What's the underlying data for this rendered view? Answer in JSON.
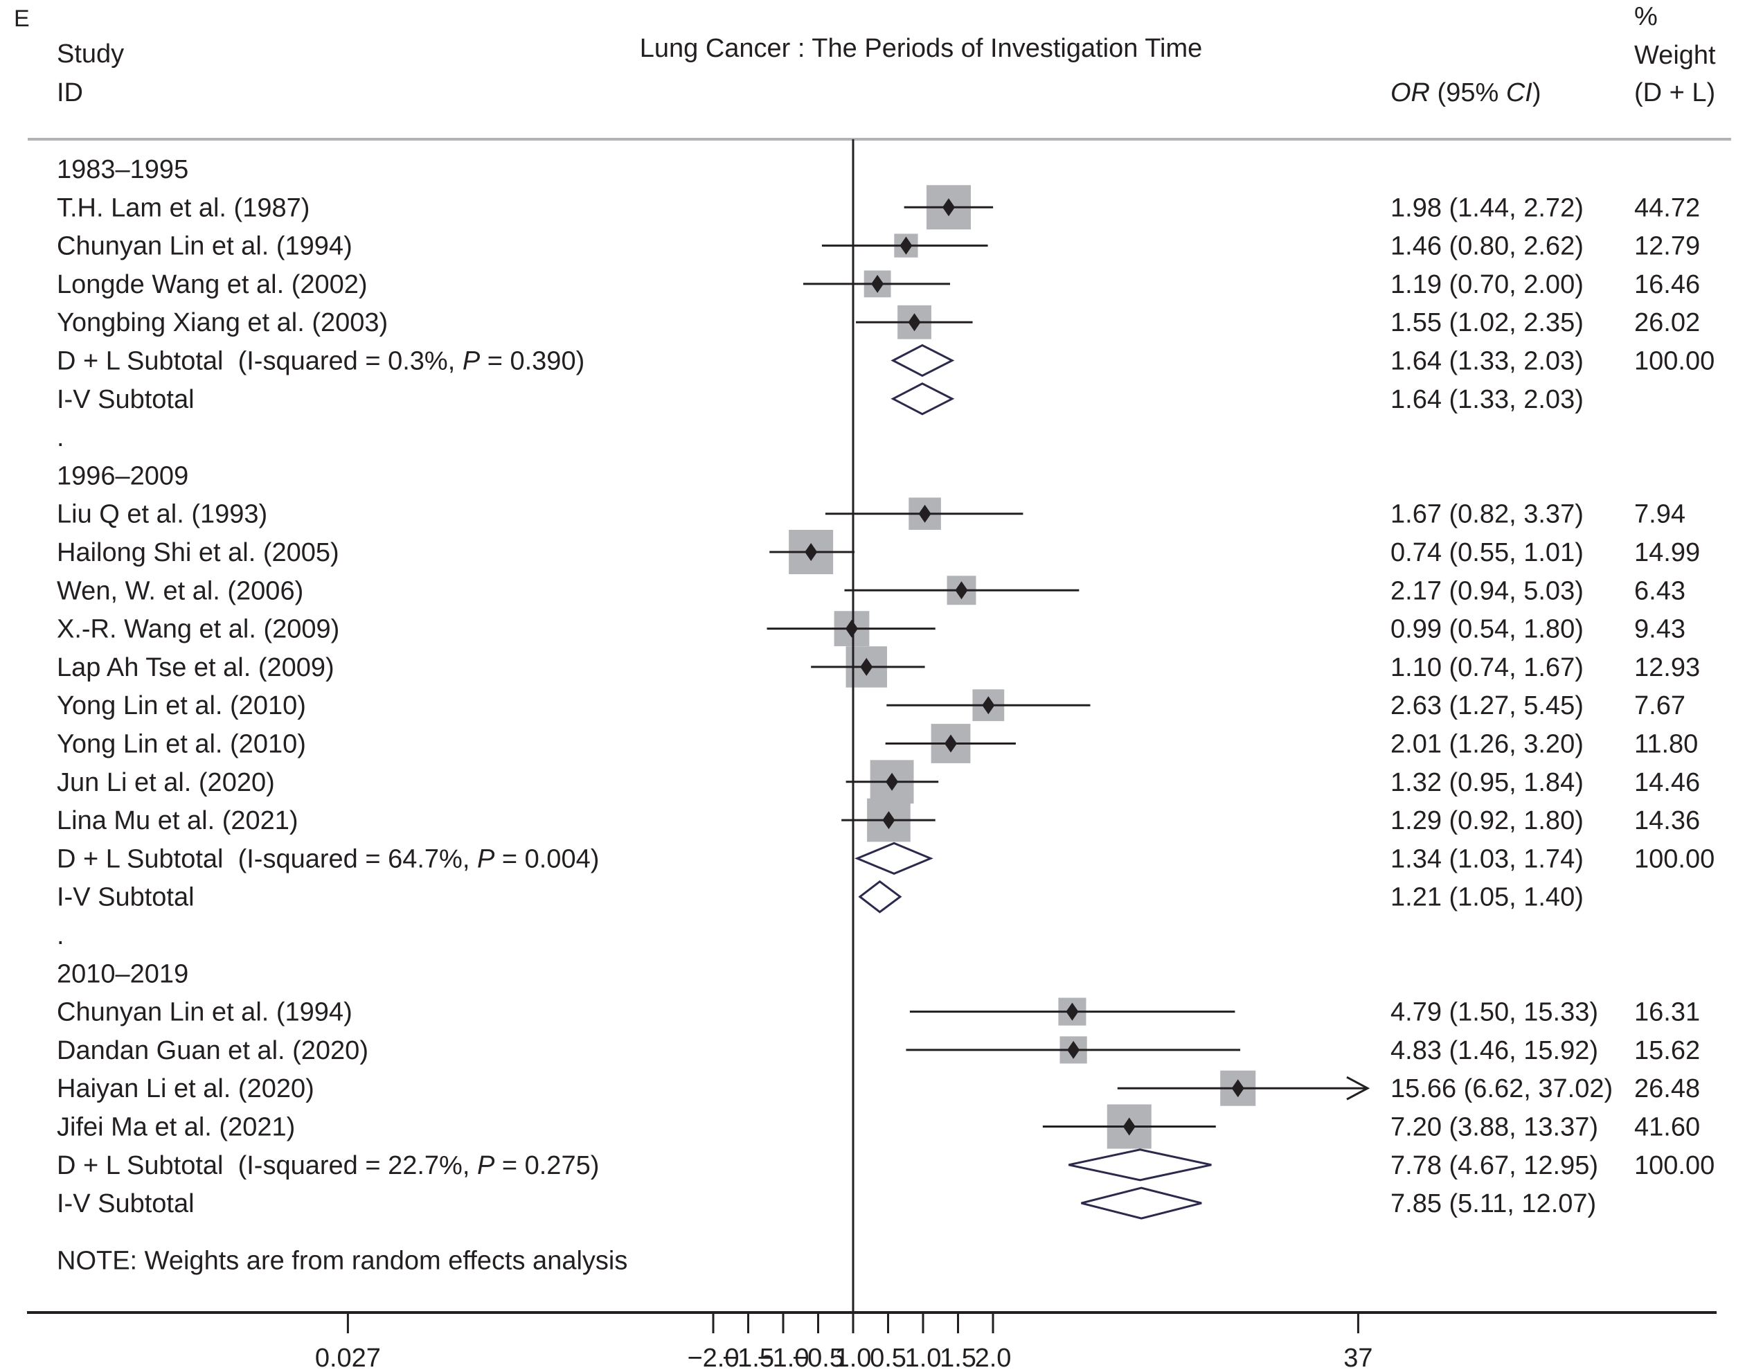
{
  "chart_data": {
    "type": "forest",
    "panel_label": "E",
    "title": "Lung Cancer : The Periods of Investigation Time",
    "headers": {
      "study_line1": "Study",
      "study_line2": "ID",
      "or_label_italic": "OR",
      "or_label_rest": " (95% ",
      "or_label_ci": "CI",
      "or_label_close": ")",
      "weight_line1": "%",
      "weight_line2": "Weight",
      "weight_line3": "(D + L)"
    },
    "x_scale": "log",
    "x_ticks": [
      {
        "label": "0.027",
        "or": 0.027
      },
      {
        "label": "−2.0",
        "or": 0.3679
      },
      {
        "label": "−1.5",
        "or": 0.4724
      },
      {
        "label": "−1.0",
        "or": 0.6065
      },
      {
        "label": "−0.5",
        "or": 0.7788
      },
      {
        "label": "1.0",
        "or": 1.0
      },
      {
        "label": "0.5",
        "or": 1.284
      },
      {
        "label": "1.0",
        "or": 1.6487
      },
      {
        "label": "1.5",
        "or": 2.117
      },
      {
        "label": "2.0",
        "or": 2.7183
      },
      {
        "label": "37",
        "or": 37
      }
    ],
    "null_line": 1.0,
    "rows": [
      {
        "kind": "group",
        "label": "1983–1995"
      },
      {
        "kind": "study",
        "label": "T.H. Lam et al. (1987)",
        "or": 1.98,
        "lo": 1.44,
        "hi": 2.72,
        "text": "1.98 (1.44, 2.72)",
        "weight": "44.72",
        "w": 44.72
      },
      {
        "kind": "study",
        "label": "Chunyan Lin et al. (1994)",
        "or": 1.46,
        "lo": 0.8,
        "hi": 2.62,
        "text": "1.46 (0.80, 2.62)",
        "weight": "12.79",
        "w": 12.79
      },
      {
        "kind": "study",
        "label": "Longde Wang et al. (2002)",
        "or": 1.19,
        "lo": 0.7,
        "hi": 2.0,
        "text": "1.19 (0.70, 2.00)",
        "weight": "16.46",
        "w": 16.46
      },
      {
        "kind": "study",
        "label": "Yongbing Xiang et al. (2003)",
        "or": 1.55,
        "lo": 1.02,
        "hi": 2.35,
        "text": "1.55 (1.02, 2.35)",
        "weight": "26.02",
        "w": 26.02
      },
      {
        "kind": "subtotal",
        "label": "D + L Subtotal  (I-squared = 0.3%, ",
        "p_label": "P",
        "p_rest": " = 0.390)",
        "or": 1.64,
        "lo": 1.33,
        "hi": 2.03,
        "text": "1.64 (1.33, 2.03)",
        "weight": "100.00"
      },
      {
        "kind": "subtotal",
        "label": "I-V Subtotal",
        "or": 1.64,
        "lo": 1.33,
        "hi": 2.03,
        "text": "1.64 (1.33, 2.03)",
        "weight": ""
      },
      {
        "kind": "spacer",
        "label": "."
      },
      {
        "kind": "group",
        "label": "1996–2009"
      },
      {
        "kind": "study",
        "label": "Liu Q et al. (1993)",
        "or": 1.67,
        "lo": 0.82,
        "hi": 3.37,
        "text": "1.67 (0.82, 3.37)",
        "weight": "7.94",
        "w": 7.94
      },
      {
        "kind": "study",
        "label": "Hailong Shi et al. (2005)",
        "or": 0.74,
        "lo": 0.55,
        "hi": 1.01,
        "text": "0.74 (0.55, 1.01)",
        "weight": "14.99",
        "w": 14.99
      },
      {
        "kind": "study",
        "label": "Wen, W. et al. (2006)",
        "or": 2.17,
        "lo": 0.94,
        "hi": 5.03,
        "text": "2.17 (0.94, 5.03)",
        "weight": "6.43",
        "w": 6.43
      },
      {
        "kind": "study",
        "label": "X.-R. Wang et al. (2009)",
        "or": 0.99,
        "lo": 0.54,
        "hi": 1.8,
        "text": "0.99 (0.54, 1.80)",
        "weight": "9.43",
        "w": 9.43
      },
      {
        "kind": "study",
        "label": "Lap Ah Tse et al. (2009)",
        "or": 1.1,
        "lo": 0.74,
        "hi": 1.67,
        "text": "1.10 (0.74, 1.67)",
        "weight": "12.93",
        "w": 12.93
      },
      {
        "kind": "study",
        "label": "Yong Lin et al. (2010)",
        "or": 2.63,
        "lo": 1.27,
        "hi": 5.45,
        "text": "2.63 (1.27, 5.45)",
        "weight": "7.67",
        "w": 7.67
      },
      {
        "kind": "study",
        "label": "Yong Lin et al. (2010)",
        "or": 2.01,
        "lo": 1.26,
        "hi": 3.2,
        "text": "2.01 (1.26, 3.20)",
        "weight": "11.80",
        "w": 11.8
      },
      {
        "kind": "study",
        "label": "Jun Li et al. (2020)",
        "or": 1.32,
        "lo": 0.95,
        "hi": 1.84,
        "text": "1.32 (0.95, 1.84)",
        "weight": "14.46",
        "w": 14.46
      },
      {
        "kind": "study",
        "label": "Lina Mu et al. (2021)",
        "or": 1.29,
        "lo": 0.92,
        "hi": 1.8,
        "text": "1.29 (0.92, 1.80)",
        "weight": "14.36",
        "w": 14.36
      },
      {
        "kind": "subtotal",
        "label": "D + L Subtotal  (I-squared = 64.7%, ",
        "p_label": "P",
        "p_rest": " = 0.004)",
        "or": 1.34,
        "lo": 1.03,
        "hi": 1.74,
        "text": "1.34 (1.03, 1.74)",
        "weight": "100.00"
      },
      {
        "kind": "subtotal",
        "label": "I-V Subtotal",
        "or": 1.21,
        "lo": 1.05,
        "hi": 1.4,
        "text": "1.21 (1.05, 1.40)",
        "weight": ""
      },
      {
        "kind": "spacer",
        "label": "."
      },
      {
        "kind": "group",
        "label": "2010–2019"
      },
      {
        "kind": "study",
        "label": "Chunyan Lin et al. (1994)",
        "or": 4.79,
        "lo": 1.5,
        "hi": 15.33,
        "text": "4.79 (1.50, 15.33)",
        "weight": "16.31",
        "w": 16.31
      },
      {
        "kind": "study",
        "label": "Dandan Guan et al. (2020)",
        "or": 4.83,
        "lo": 1.46,
        "hi": 15.92,
        "text": "4.83 (1.46, 15.92)",
        "weight": "15.62",
        "w": 15.62
      },
      {
        "kind": "study",
        "label": "Haiyan Li et al. (2020)",
        "or": 15.66,
        "lo": 6.62,
        "hi": 37.02,
        "text": "15.66 (6.62, 37.02)",
        "weight": "26.48",
        "w": 26.48,
        "arrow_right": true
      },
      {
        "kind": "study",
        "label": "Jifei Ma et al. (2021)",
        "or": 7.2,
        "lo": 3.88,
        "hi": 13.37,
        "text": "7.20 (3.88, 13.37)",
        "weight": "41.60",
        "w": 41.6
      },
      {
        "kind": "subtotal",
        "label": "D + L Subtotal  (I-squared = 22.7%, ",
        "p_label": "P",
        "p_rest": " = 0.275)",
        "or": 7.78,
        "lo": 4.67,
        "hi": 12.95,
        "text": "7.78 (4.67, 12.95)",
        "weight": "100.00"
      },
      {
        "kind": "subtotal",
        "label": "I-V Subtotal",
        "or": 7.85,
        "lo": 5.11,
        "hi": 12.07,
        "text": "7.85 (5.11, 12.07)",
        "weight": ""
      }
    ],
    "note": "NOTE: Weights are from random effects analysis",
    "colors": {
      "text": "#231f20",
      "box": "#b1b3b6",
      "line": "#231f20",
      "diamond": "#2b2a4c",
      "header_rule": "#b1b3b6"
    }
  }
}
